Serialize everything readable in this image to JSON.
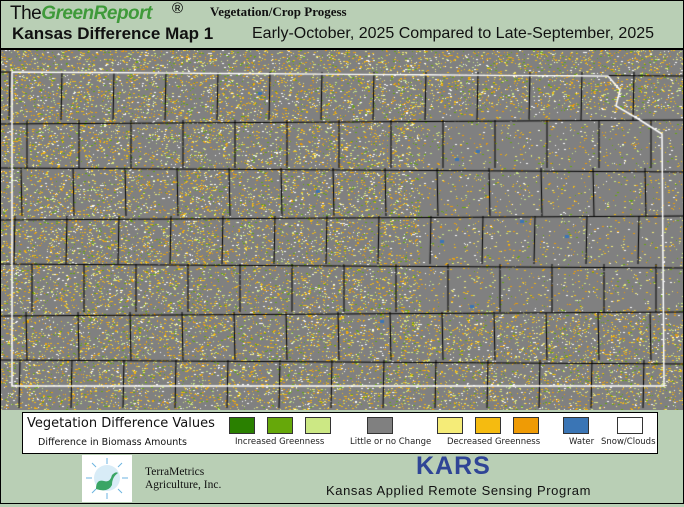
{
  "header": {
    "brand_prefix": "The",
    "brand_name": "GreenReport",
    "registered_mark": "®",
    "subtitle": "Vegetation/Crop Progess",
    "map_title": "Kansas Difference Map 1",
    "comparison": "Early-October, 2025 Compared to Late-September, 2025"
  },
  "map": {
    "state": "Kansas",
    "background_color": "#808080",
    "boundary_color": "#ffffff",
    "county_line_color": "#000000"
  },
  "legend": {
    "title": "Vegetation Difference Values",
    "subtitle": "Difference in Biomass Amounts",
    "groups": [
      {
        "label": "Increased Greenness",
        "colors": [
          "#2a8000",
          "#66a80a",
          "#cce884"
        ]
      },
      {
        "label": "Little or no Change",
        "colors": [
          "#808080"
        ]
      },
      {
        "label": "Decreased Greenness",
        "colors": [
          "#f5ec78",
          "#f5bb10",
          "#ef9b05"
        ]
      },
      {
        "label": "Water",
        "colors": [
          "#3a75b5"
        ]
      },
      {
        "label": "Snow/Clouds",
        "colors": [
          "#ffffff"
        ]
      }
    ]
  },
  "footer": {
    "partner_line1": "TerraMetrics",
    "partner_line2": "Agriculture, Inc.",
    "program_acronym": "KARS",
    "program_name": "Kansas Applied Remote Sensing Program"
  }
}
